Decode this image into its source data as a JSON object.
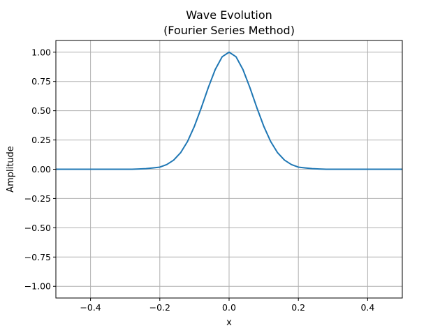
{
  "chart_data": {
    "type": "line",
    "title_lines": [
      "Wave Evolution",
      "(Fourier Series Method)"
    ],
    "xlabel": "x",
    "ylabel": "Amplitude",
    "xlim": [
      -0.5,
      0.5
    ],
    "ylim": [
      -1.1,
      1.1
    ],
    "x_ticks": [
      -0.4,
      -0.2,
      0.0,
      0.2,
      0.4
    ],
    "x_tick_labels": [
      "−0.4",
      "−0.2",
      "0.0",
      "0.2",
      "0.4"
    ],
    "y_ticks": [
      -1.0,
      -0.75,
      -0.5,
      -0.25,
      0.0,
      0.25,
      0.5,
      0.75,
      1.0
    ],
    "y_tick_labels": [
      "−1.00",
      "−0.75",
      "−0.50",
      "−0.25",
      "0.00",
      "0.25",
      "0.50",
      "0.75",
      "1.00"
    ],
    "grid": true,
    "series": [
      {
        "color": "#1f77b4",
        "x": [
          -0.5,
          -0.48,
          -0.46,
          -0.44,
          -0.42,
          -0.4,
          -0.38,
          -0.36,
          -0.34,
          -0.32,
          -0.3,
          -0.28,
          -0.26,
          -0.24,
          -0.22,
          -0.2,
          -0.18,
          -0.16,
          -0.14,
          -0.12,
          -0.1,
          -0.08,
          -0.06,
          -0.04,
          -0.02,
          0.0,
          0.02,
          0.04,
          0.06,
          0.08,
          0.1,
          0.12,
          0.14,
          0.16,
          0.18,
          0.2,
          0.22,
          0.24,
          0.26,
          0.28,
          0.3,
          0.32,
          0.34,
          0.36,
          0.38,
          0.4,
          0.42,
          0.44,
          0.46,
          0.48,
          0.5
        ],
        "y": [
          0.0,
          0.0,
          0.0,
          0.0,
          0.0,
          0.0,
          0.0,
          0.0,
          0.0,
          0.0,
          0.0,
          0.0,
          0.002,
          0.005,
          0.011,
          0.018,
          0.04,
          0.078,
          0.141,
          0.237,
          0.368,
          0.527,
          0.698,
          0.852,
          0.961,
          1.0,
          0.961,
          0.852,
          0.698,
          0.527,
          0.368,
          0.237,
          0.141,
          0.078,
          0.04,
          0.018,
          0.011,
          0.005,
          0.002,
          0.0,
          0.0,
          0.0,
          0.0,
          0.0,
          0.0,
          0.0,
          0.0,
          0.0,
          0.0,
          0.0,
          0.0
        ]
      }
    ]
  }
}
